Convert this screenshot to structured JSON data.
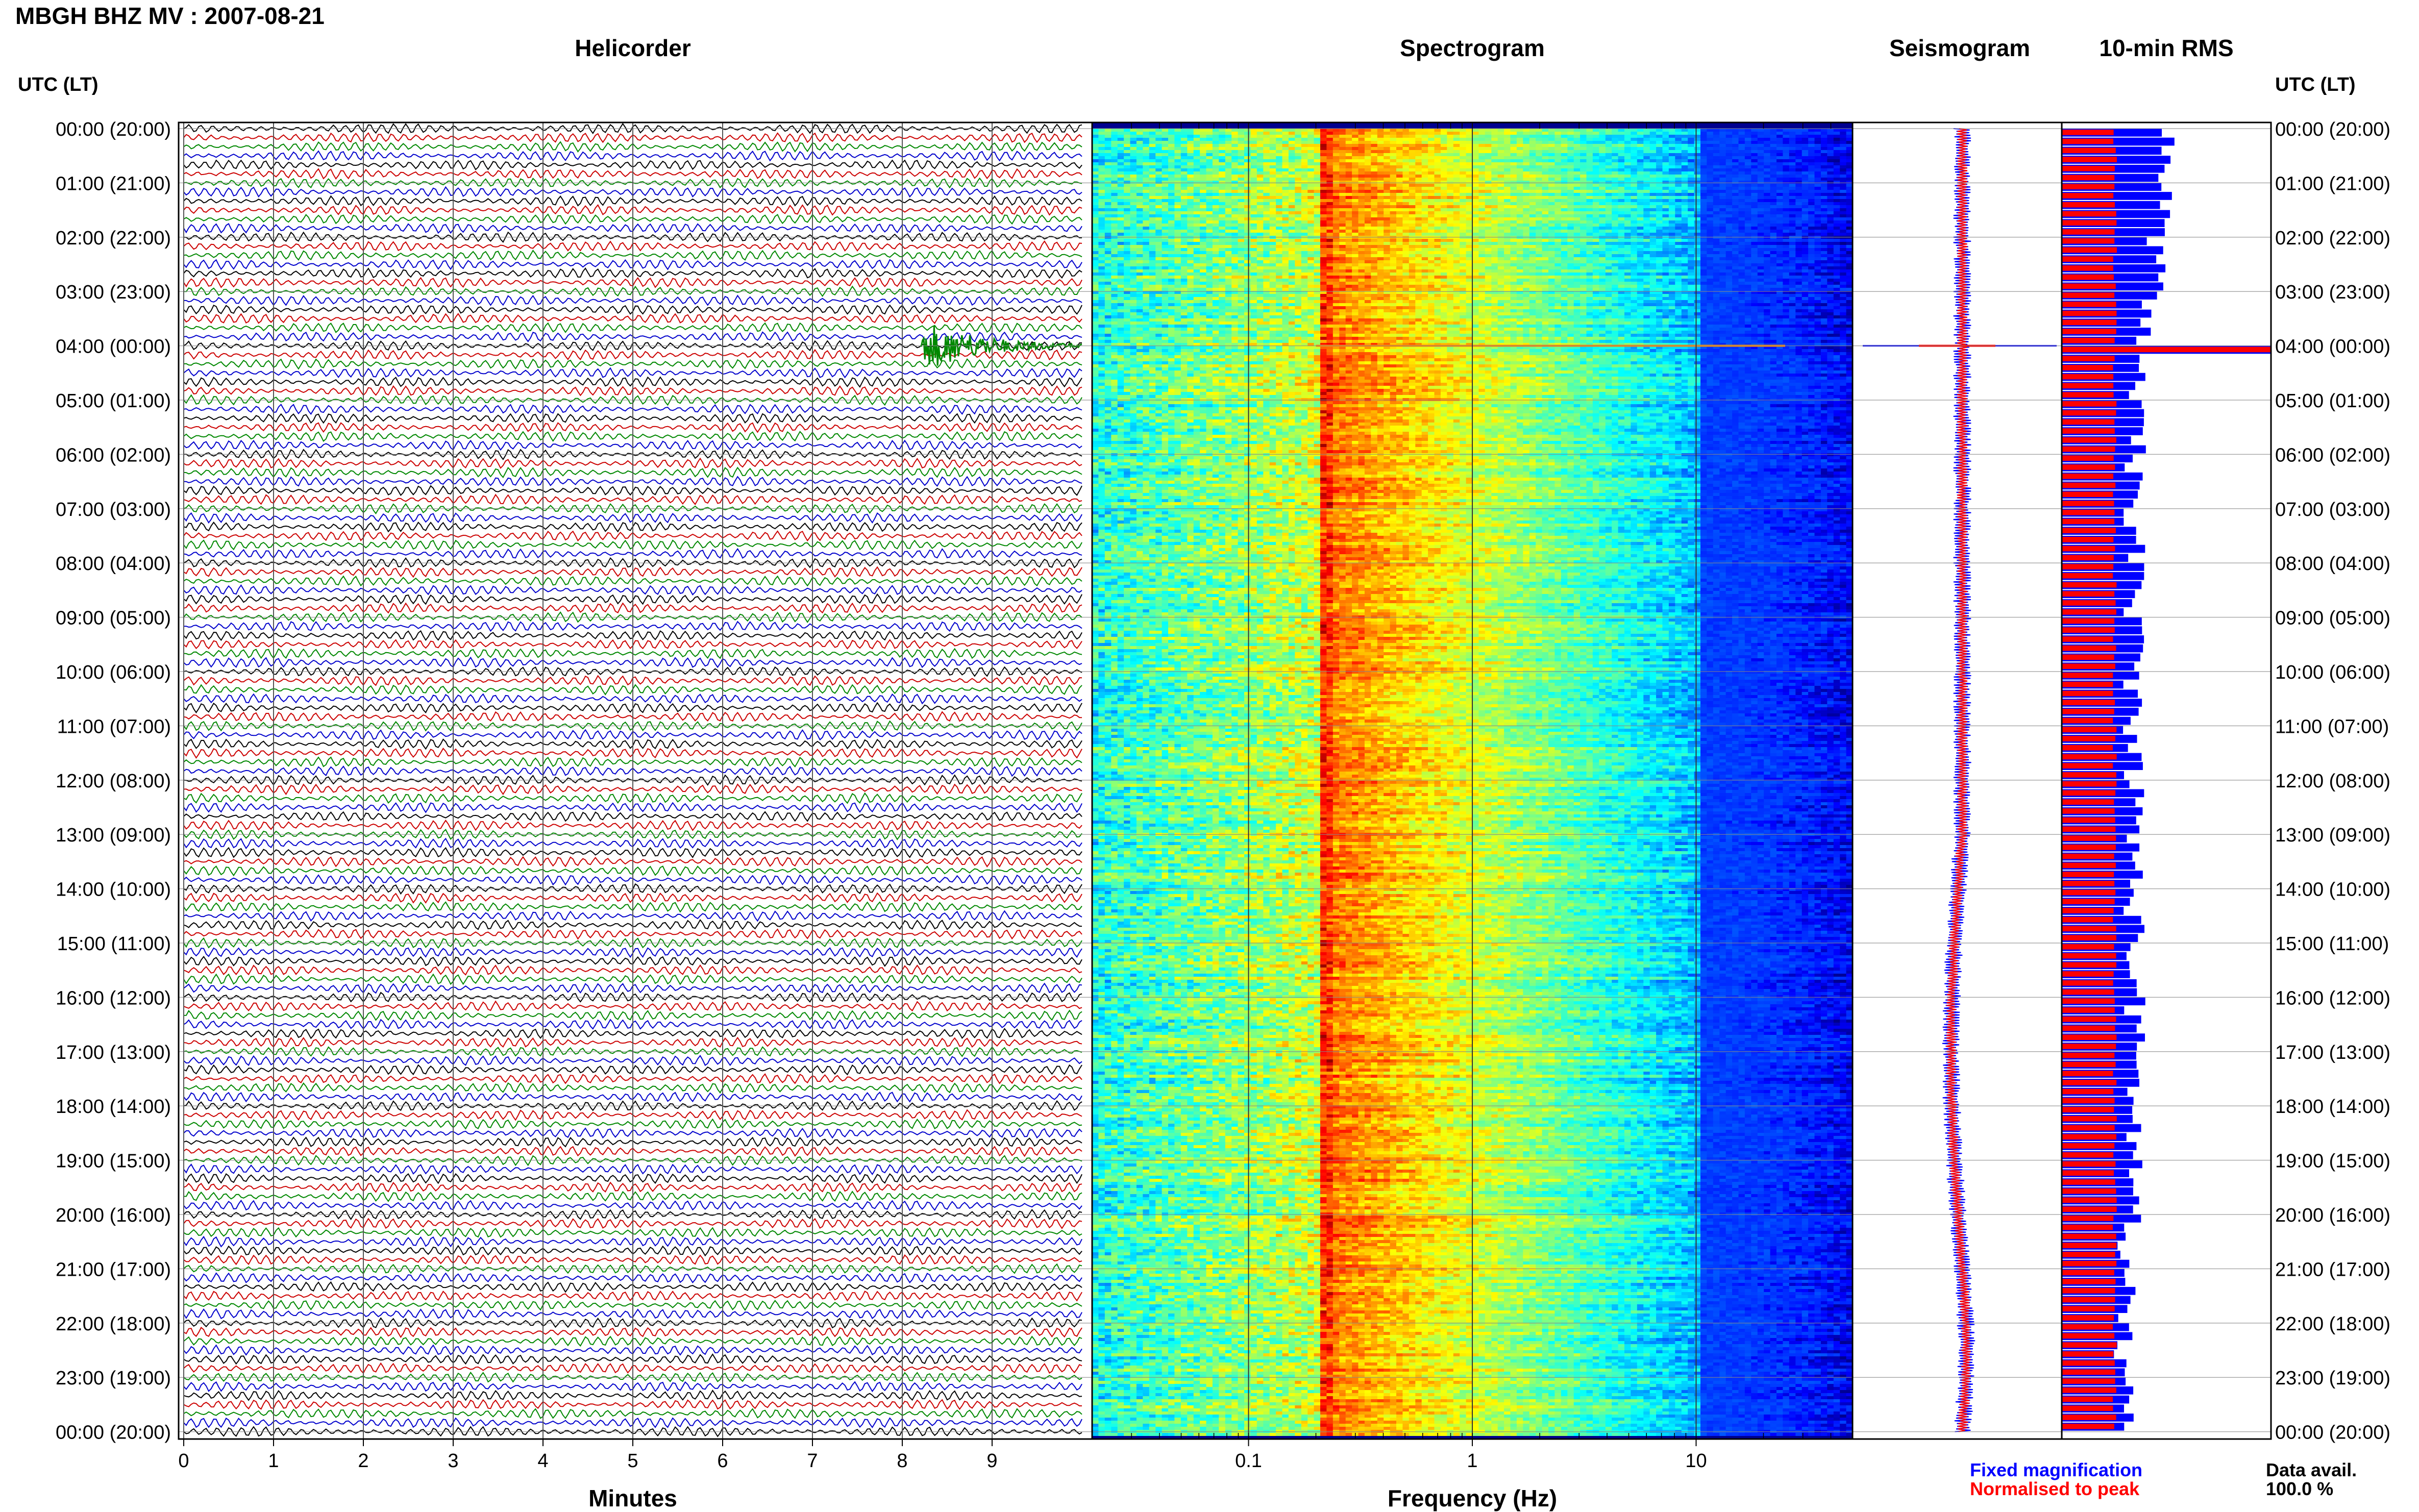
{
  "station_title": "MBGH BHZ MV : 2007-08-21",
  "panels": {
    "helicorder": "Helicorder",
    "spectrogram": "Spectrogram",
    "seismogram": "Seismogram",
    "rms": "10-min RMS"
  },
  "utc_label": "UTC (LT)",
  "hour_labels": [
    "00:00 (20:00)",
    "01:00 (21:00)",
    "02:00 (22:00)",
    "03:00 (23:00)",
    "04:00 (00:00)",
    "05:00 (01:00)",
    "06:00 (02:00)",
    "07:00 (03:00)",
    "08:00 (04:00)",
    "09:00 (05:00)",
    "10:00 (06:00)",
    "11:00 (07:00)",
    "12:00 (08:00)",
    "13:00 (09:00)",
    "14:00 (10:00)",
    "15:00 (11:00)",
    "16:00 (12:00)",
    "17:00 (13:00)",
    "18:00 (14:00)",
    "19:00 (15:00)",
    "20:00 (16:00)",
    "21:00 (17:00)",
    "22:00 (18:00)",
    "23:00 (19:00)",
    "00:00 (20:00)"
  ],
  "legend": {
    "fixed": "Fixed magnification",
    "normalised": "Normalised to peak",
    "fixed_color": "#0000ff",
    "normalised_color": "#ff0000"
  },
  "data_avail": {
    "label": "Data avail.",
    "value": "100.0 %"
  },
  "chart_data": [
    {
      "type": "line",
      "panel": "helicorder",
      "title": "Helicorder",
      "xlabel": "Minutes",
      "ylabel": "UTC (LT)",
      "x_ticks": [
        0,
        1,
        2,
        3,
        4,
        5,
        6,
        7,
        8,
        9
      ],
      "xlim": [
        0,
        10
      ],
      "trace_colors": [
        "#000000",
        "#cc0000",
        "#008800",
        "#0000cc"
      ],
      "traces_per_hour": 6,
      "grid": true,
      "events": [
        {
          "hour": 3.95,
          "minute_start": 8.2,
          "minute_end": 10.0,
          "color": "#008800"
        }
      ]
    },
    {
      "type": "heatmap",
      "panel": "spectrogram",
      "title": "Spectrogram",
      "xlabel": "Frequency (Hz)",
      "x_scale": "log",
      "xlim": [
        0.02,
        50
      ],
      "x_ticks": [
        0.1,
        1,
        10
      ],
      "x_tick_labels": [
        "0.1",
        "1",
        "10"
      ],
      "microseism_peak_hz": 0.2,
      "colormap": "jet",
      "grid": true
    },
    {
      "type": "line",
      "panel": "seismogram",
      "title": "Seismogram",
      "series": [
        {
          "name": "Fixed magnification",
          "color": "#0000ff"
        },
        {
          "name": "Normalised to peak",
          "color": "#ff0000"
        }
      ],
      "spike_hour": 4.0
    },
    {
      "type": "bar",
      "panel": "rms",
      "title": "10-min RMS",
      "orientation": "horizontal",
      "series": [
        {
          "name": "Fixed magnification",
          "color": "#0000ff"
        },
        {
          "name": "Normalised to peak",
          "color": "#ff0000"
        }
      ],
      "spike_hour": 4.0
    }
  ]
}
